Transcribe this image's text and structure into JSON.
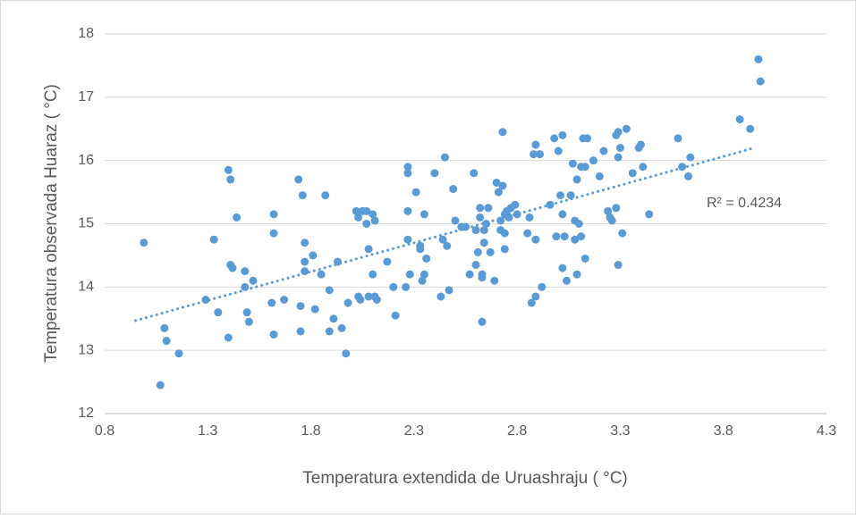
{
  "chart_data": {
    "type": "scatter",
    "x_label": "Temperatura extendida de Uruashraju ( °C)",
    "y_label": "Temperatura observada Huaraz ( °C)",
    "annotation": "R² = 0.4234",
    "color": "#5b9bd5",
    "grid": true,
    "xlim": [
      0.8,
      4.3
    ],
    "xticks": [
      0.8,
      1.3,
      1.8,
      2.3,
      2.8,
      3.3,
      3.8,
      4.3
    ],
    "ylim": [
      12,
      18
    ],
    "yticks": [
      12,
      13,
      14,
      15,
      16,
      17,
      18
    ],
    "trendline": {
      "x": [
        0.95,
        3.95
      ],
      "y": [
        13.47,
        16.2
      ]
    },
    "x": [
      0.99,
      1.07,
      1.09,
      1.1,
      1.16,
      1.29,
      1.33,
      1.35,
      1.4,
      1.41,
      1.4,
      1.41,
      1.42,
      1.44,
      1.48,
      1.48,
      1.49,
      1.5,
      1.52,
      1.62,
      1.62,
      1.61,
      1.62,
      1.67,
      1.74,
      1.75,
      1.75,
      1.76,
      1.77,
      1.77,
      1.77,
      1.81,
      1.82,
      1.85,
      1.87,
      1.89,
      1.89,
      1.91,
      1.93,
      1.95,
      1.97,
      1.98,
      2.02,
      2.03,
      2.03,
      2.04,
      2.05,
      2.07,
      2.07,
      2.08,
      2.08,
      2.1,
      2.1,
      2.11,
      2.11,
      2.12,
      2.17,
      2.2,
      2.21,
      2.26,
      2.27,
      2.27,
      2.27,
      2.27,
      2.28,
      2.31,
      2.33,
      2.33,
      2.34,
      2.35,
      2.35,
      2.36,
      2.4,
      2.43,
      2.44,
      2.45,
      2.46,
      2.47,
      2.49,
      2.5,
      2.53,
      2.55,
      2.57,
      2.59,
      2.6,
      2.6,
      2.61,
      2.62,
      2.62,
      2.63,
      2.63,
      2.63,
      2.64,
      2.64,
      2.65,
      2.66,
      2.67,
      2.69,
      2.7,
      2.71,
      2.72,
      2.72,
      2.73,
      2.73,
      2.74,
      2.74,
      2.74,
      2.75,
      2.76,
      2.77,
      2.79,
      2.8,
      2.85,
      2.86,
      2.87,
      2.88,
      2.89,
      2.89,
      2.89,
      2.91,
      2.92,
      2.96,
      2.98,
      2.99,
      3.0,
      3.01,
      3.02,
      3.02,
      3.02,
      3.03,
      3.04,
      3.06,
      3.07,
      3.08,
      3.08,
      3.09,
      3.09,
      3.1,
      3.11,
      3.11,
      3.12,
      3.13,
      3.13,
      3.14,
      3.17,
      3.2,
      3.22,
      3.24,
      3.25,
      3.26,
      3.28,
      3.28,
      3.29,
      3.29,
      3.29,
      3.3,
      3.31,
      3.33,
      3.36,
      3.39,
      3.4,
      3.41,
      3.44,
      3.58,
      3.6,
      3.63,
      3.64,
      3.88,
      3.93,
      3.97,
      3.98
    ],
    "values": [
      14.7,
      12.45,
      13.35,
      13.15,
      12.95,
      13.8,
      14.75,
      13.6,
      15.85,
      15.7,
      13.2,
      14.35,
      14.3,
      15.1,
      14.25,
      14.0,
      13.6,
      13.45,
      14.1,
      15.15,
      14.85,
      13.75,
      13.25,
      13.8,
      15.7,
      13.7,
      13.3,
      15.45,
      14.7,
      14.4,
      14.25,
      14.5,
      13.65,
      14.2,
      15.45,
      13.95,
      13.3,
      13.5,
      14.4,
      13.35,
      12.95,
      13.75,
      15.2,
      15.1,
      13.85,
      13.8,
      15.2,
      15.2,
      15.0,
      14.6,
      13.85,
      15.15,
      14.2,
      15.05,
      13.85,
      13.8,
      14.4,
      14.0,
      13.55,
      14.0,
      15.9,
      15.8,
      15.2,
      14.75,
      14.2,
      15.5,
      14.65,
      14.6,
      14.1,
      14.2,
      15.15,
      14.45,
      15.8,
      13.85,
      14.75,
      16.05,
      14.65,
      13.95,
      15.55,
      15.05,
      14.95,
      14.95,
      14.2,
      15.8,
      14.35,
      14.9,
      14.55,
      15.25,
      15.1,
      14.2,
      14.15,
      13.45,
      14.9,
      14.7,
      15.0,
      15.25,
      14.55,
      14.1,
      15.65,
      15.5,
      14.9,
      15.05,
      16.45,
      15.6,
      15.15,
      14.85,
      14.6,
      15.2,
      15.1,
      15.25,
      15.3,
      15.15,
      14.85,
      15.1,
      13.75,
      16.1,
      16.25,
      14.75,
      13.85,
      16.1,
      14.0,
      15.3,
      16.35,
      14.8,
      16.15,
      15.45,
      15.15,
      14.3,
      16.4,
      14.8,
      14.1,
      15.45,
      15.95,
      14.75,
      15.05,
      15.7,
      14.2,
      15.0,
      14.8,
      15.9,
      16.35,
      15.9,
      14.45,
      16.35,
      16.0,
      15.75,
      16.15,
      15.2,
      15.1,
      15.05,
      16.4,
      15.25,
      16.05,
      16.45,
      14.35,
      16.2,
      14.85,
      16.5,
      15.8,
      16.2,
      16.25,
      15.9,
      15.15,
      16.35,
      15.9,
      15.75,
      16.05,
      16.65,
      16.5,
      17.6,
      17.25
    ]
  }
}
